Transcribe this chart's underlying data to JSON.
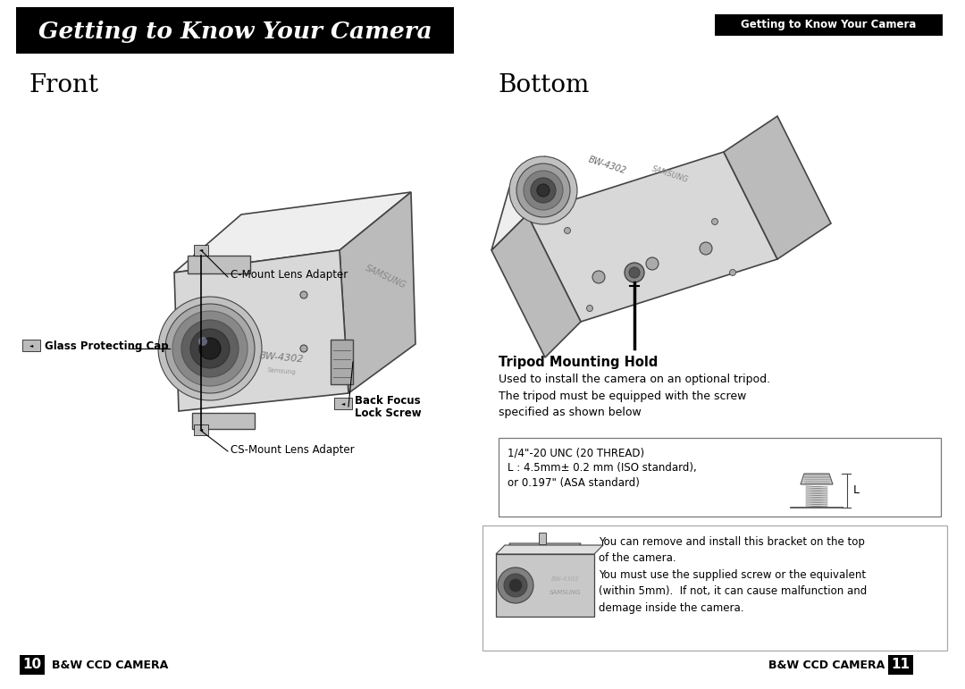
{
  "title_text": "Getting to Know Your Camera",
  "title_bg": "#000000",
  "title_fg": "#ffffff",
  "subtitle_tag": "Getting to Know Your Camera",
  "section_left": "Front",
  "section_right": "Bottom",
  "bg_color": "#ffffff",
  "text_color": "#000000",
  "footer_left_num": "10",
  "footer_left_text": "B&W CCD CAMERA",
  "footer_right_text": "B&W CCD CAMERA",
  "footer_right_num": "11",
  "tripod_title": "Tripod Mounting Hold",
  "tripod_desc": "Used to install the camera on an optional tripod.\nThe tripod must be equipped with the screw\nspecified as shown below",
  "tripod_spec_line1": "1/4\"-20 UNC (20 THREAD)",
  "tripod_spec_line2": "L : 4.5mm± 0.2 mm (ISO standard),",
  "tripod_spec_line3": "or 0.197\" (ASA standard)",
  "bracket_desc": "You can remove and install this bracket on the top\nof the camera.\nYou must use the supplied screw or the equivalent\n(within 5mm).  If not, it can cause malfunction and\ndemage inside the camera.",
  "cam_line_color": "#444444",
  "cam_body_color": "#d8d8d8",
  "cam_top_color": "#eeeeee",
  "cam_side_color": "#bbbbbb",
  "cam_dark": "#888888"
}
